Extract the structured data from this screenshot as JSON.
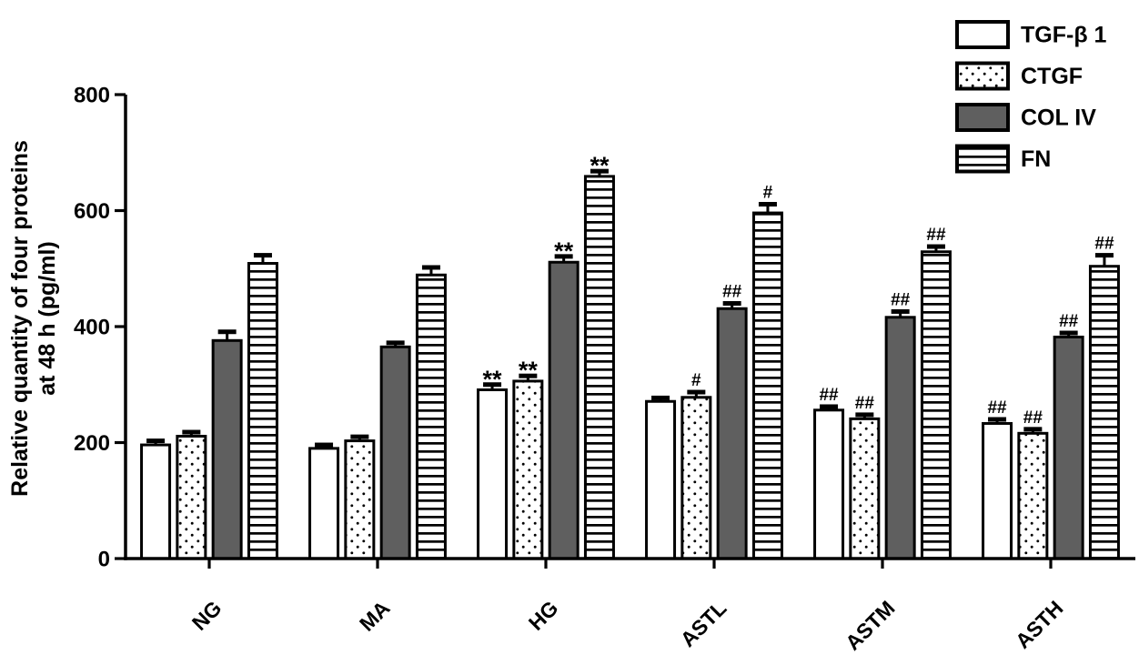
{
  "figure": {
    "y_axis_title_line1": "Relative quantity of four proteins",
    "y_axis_title_line2": "at 48 h (pg/ml)"
  },
  "legend": {
    "position": "top-right",
    "items": [
      {
        "label": "TGF-β 1",
        "swatch": "white-open"
      },
      {
        "label": "CTGF",
        "swatch": "dots"
      },
      {
        "label": "COL IV",
        "swatch": "gray-solid"
      },
      {
        "label": "FN",
        "swatch": "horizontal-lines"
      }
    ]
  },
  "chart_data": {
    "type": "bar",
    "title": "",
    "xlabel": "",
    "ylabel": "Relative quantity of four proteins at 48 h (pg/ml)",
    "categories": [
      "NG",
      "MA",
      "HG",
      "ASTL",
      "ASTM",
      "ASTH"
    ],
    "yticks": [
      0,
      200,
      400,
      600,
      800
    ],
    "ylim": [
      0,
      800
    ],
    "grid": false,
    "legend_position": "top-right",
    "error_bars": "upper-sd-with-cap",
    "series": [
      {
        "name": "TGF-β 1",
        "fill": "white",
        "values": [
          196,
          190,
          291,
          271,
          256,
          233
        ],
        "errors_upper": [
          7,
          6,
          9,
          6,
          6,
          7
        ],
        "annotations": [
          "",
          "",
          "**",
          "",
          "##",
          "##"
        ]
      },
      {
        "name": "CTGF",
        "fill": "dots",
        "values": [
          211,
          203,
          306,
          278,
          241,
          216
        ],
        "errors_upper": [
          7,
          7,
          9,
          9,
          7,
          7
        ],
        "annotations": [
          "",
          "",
          "**",
          "#",
          "##",
          "##"
        ]
      },
      {
        "name": "COL IV",
        "fill": "gray",
        "values": [
          376,
          365,
          511,
          431,
          416,
          382
        ],
        "errors_upper": [
          15,
          7,
          10,
          9,
          10,
          7
        ],
        "annotations": [
          "",
          "",
          "**",
          "##",
          "##",
          "##"
        ]
      },
      {
        "name": "FN",
        "fill": "hlines",
        "values": [
          509,
          489,
          659,
          596,
          529,
          504
        ],
        "errors_upper": [
          14,
          13,
          9,
          15,
          9,
          19
        ],
        "annotations": [
          "",
          "",
          "**",
          "#",
          "##",
          "##"
        ]
      }
    ],
    "colors": {
      "ink": "#000000",
      "gray_fill": "#5f5f5f",
      "background": "#ffffff"
    }
  }
}
